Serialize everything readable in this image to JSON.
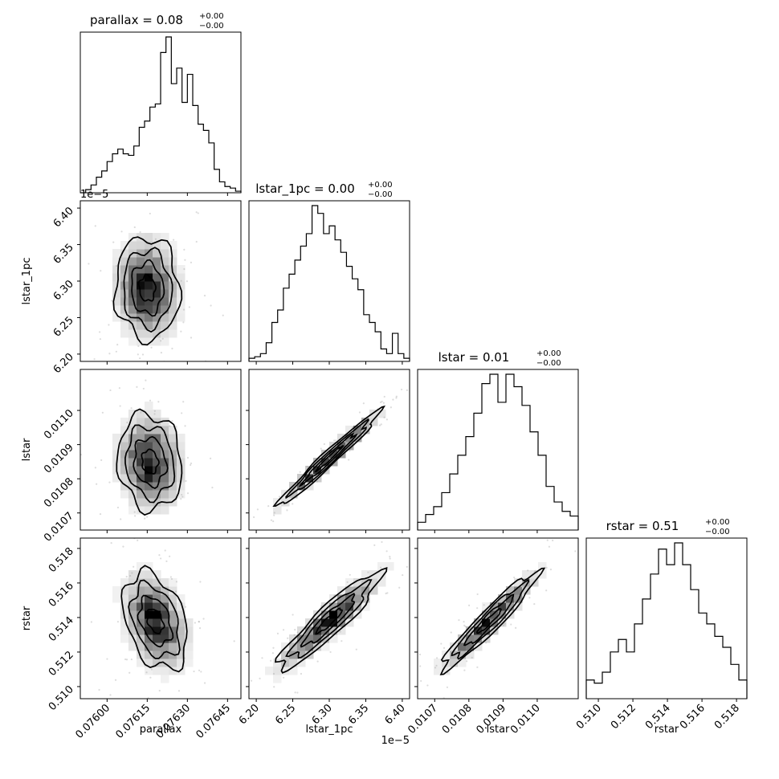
{
  "chart_data": {
    "type": "corner",
    "parameters": [
      {
        "name": "parallax",
        "label": "parallax",
        "title": "parallax = 0.08",
        "title_upper": "+0.00",
        "title_lower": "−0.00",
        "range": [
          0.0759,
          0.0765
        ],
        "ticks": [
          0.076,
          0.07615,
          0.0763,
          0.07645
        ],
        "tick_labels": [
          "0.07600",
          "0.07615",
          "0.07630",
          "0.07645"
        ],
        "hist": [
          0.0,
          0.02,
          0.05,
          0.1,
          0.14,
          0.2,
          0.25,
          0.28,
          0.25,
          0.24,
          0.3,
          0.42,
          0.46,
          0.55,
          0.57,
          0.9,
          1.0,
          0.7,
          0.8,
          0.58,
          0.76,
          0.56,
          0.44,
          0.4,
          0.32,
          0.15,
          0.07,
          0.04,
          0.03,
          0.01
        ]
      },
      {
        "name": "lstar_1pc",
        "label": "lstar_1pc",
        "title": "lstar_1pc = 0.00",
        "title_upper": "+0.00",
        "title_lower": "−0.00",
        "range": [
          6.19,
          6.41
        ],
        "ticks": [
          6.2,
          6.25,
          6.3,
          6.35,
          6.4
        ],
        "tick_labels": [
          "6.20",
          "6.25",
          "6.30",
          "6.35",
          "6.40"
        ],
        "offset_label": "1e−5",
        "hist": [
          0.02,
          0.03,
          0.05,
          0.12,
          0.25,
          0.33,
          0.47,
          0.56,
          0.65,
          0.74,
          0.82,
          1.0,
          0.95,
          0.82,
          0.87,
          0.78,
          0.7,
          0.61,
          0.53,
          0.46,
          0.3,
          0.25,
          0.19,
          0.08,
          0.05,
          0.18,
          0.05,
          0.02
        ]
      },
      {
        "name": "lstar",
        "label": "lstar",
        "title": "lstar = 0.01",
        "title_upper": "+0.00",
        "title_lower": "−0.00",
        "range": [
          0.01065,
          0.01112
        ],
        "ticks": [
          0.0107,
          0.0108,
          0.0109,
          0.011
        ],
        "tick_labels": [
          "0.0107",
          "0.0108",
          "0.0109",
          "0.0110"
        ],
        "hist": [
          0.05,
          0.1,
          0.15,
          0.24,
          0.36,
          0.48,
          0.6,
          0.75,
          0.94,
          1.0,
          0.82,
          1.0,
          0.92,
          0.8,
          0.63,
          0.48,
          0.28,
          0.18,
          0.12,
          0.09
        ]
      },
      {
        "name": "rstar",
        "label": "rstar",
        "title": "rstar = 0.51",
        "title_upper": "+0.00",
        "title_lower": "−0.00",
        "range": [
          0.5093,
          0.5186
        ],
        "ticks": [
          0.51,
          0.512,
          0.514,
          0.516,
          0.518
        ],
        "tick_labels": [
          "0.510",
          "0.512",
          "0.514",
          "0.516",
          "0.518"
        ],
        "hist": [
          0.12,
          0.1,
          0.17,
          0.3,
          0.38,
          0.3,
          0.48,
          0.64,
          0.8,
          0.96,
          0.86,
          1.0,
          0.86,
          0.7,
          0.55,
          0.48,
          0.4,
          0.33,
          0.22,
          0.12
        ]
      }
    ],
    "pairs": [
      {
        "x": "parallax",
        "y": "lstar_1pc",
        "correlation": -0.05,
        "center": [
          0.07615,
          6.29
        ],
        "spread": [
          6e-05,
          0.035
        ]
      },
      {
        "x": "parallax",
        "y": "lstar",
        "correlation": -0.1,
        "center": [
          0.07616,
          0.01085
        ],
        "spread": [
          6e-05,
          7e-05
        ]
      },
      {
        "x": "parallax",
        "y": "rstar",
        "correlation": -0.35,
        "center": [
          0.07618,
          0.5138
        ],
        "spread": [
          6e-05,
          0.0014
        ]
      },
      {
        "x": "lstar_1pc",
        "y": "lstar",
        "correlation": 0.98,
        "center": [
          6.3,
          0.01086
        ],
        "spread": [
          0.035,
          7e-05
        ]
      },
      {
        "x": "lstar_1pc",
        "y": "rstar",
        "correlation": 0.92,
        "center": [
          6.3,
          0.5138
        ],
        "spread": [
          0.035,
          0.0014
        ]
      },
      {
        "x": "lstar",
        "y": "rstar",
        "correlation": 0.95,
        "center": [
          0.01086,
          0.5138
        ],
        "spread": [
          7e-05,
          0.0014
        ]
      }
    ],
    "grid": false,
    "legend": "none"
  }
}
